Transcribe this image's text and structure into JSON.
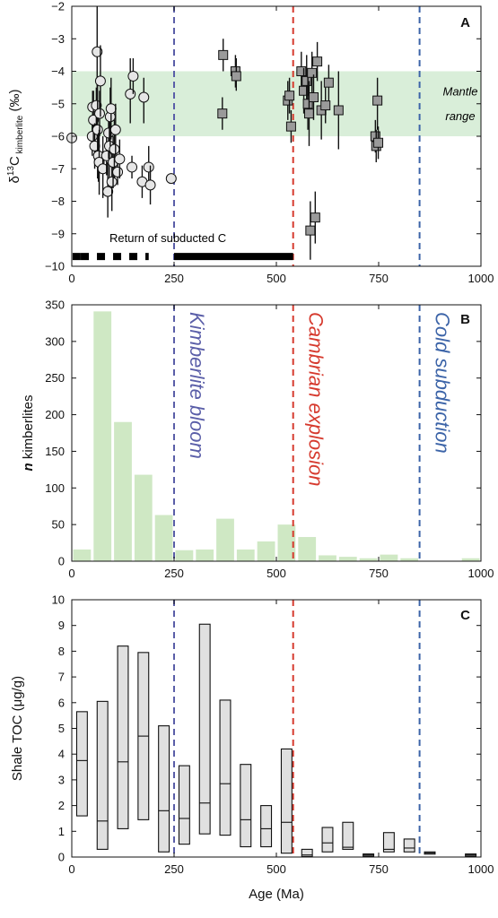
{
  "colors": {
    "mantle_band": "#d9eed9",
    "bar_fill": "#cfe8c4",
    "marker_fill": "#e6e6e6",
    "square_fill": "#9a9a9a",
    "box_fill": "#e0e0e0",
    "kimberlite_line": "#5a5ea8",
    "cambrian_line": "#d63a2e",
    "cold_line": "#3c64a8",
    "kimberlite_text": "#5a5ea8",
    "cambrian_text": "#d63a2e",
    "cold_text": "#3c64a8"
  },
  "vertical_markers": [
    {
      "x": 250,
      "color_key": "kimberlite_line"
    },
    {
      "x": 541,
      "color_key": "cambrian_line"
    },
    {
      "x": 850,
      "color_key": "cold_line"
    }
  ],
  "chart_data": [
    {
      "panel": "A",
      "type": "scatter",
      "ylabel_main": "δ",
      "ylabel_sup": "13",
      "ylabel_c": "C",
      "ylabel_sub": " kimberlite",
      "ylabel_unit": " (‰)",
      "xlim": [
        0,
        1000
      ],
      "ylim": [
        -10,
        -2
      ],
      "xticks": [
        0,
        250,
        500,
        750,
        1000
      ],
      "yticks": [
        -10,
        -9,
        -8,
        -7,
        -6,
        -5,
        -4,
        -3,
        -2
      ],
      "ytick_labels": [
        "−10",
        "−9",
        "−8",
        "−7",
        "−6",
        "−5",
        "−4",
        "−3",
        "−2"
      ],
      "mantle_range": [
        -6,
        -4
      ],
      "mantle_text_1": "Mantle",
      "mantle_text_2": "range",
      "subduction_text": "Return of subducted C",
      "subduction_segments": [
        {
          "from": 2,
          "to": 22,
          "style": "dashed"
        },
        {
          "from": 22,
          "to": 188,
          "style": "dashed"
        },
        {
          "from": 250,
          "to": 541,
          "style": "solid"
        }
      ],
      "circles": [
        {
          "x": 0,
          "y": -6.05,
          "lo": null,
          "hi": null
        },
        {
          "x": 50,
          "y": -6.0,
          "lo": -6.6,
          "hi": -5.5
        },
        {
          "x": 51,
          "y": -5.1,
          "lo": -5.6,
          "hi": -4.6
        },
        {
          "x": 53,
          "y": -5.5,
          "lo": -6.3,
          "hi": -4.6
        },
        {
          "x": 56,
          "y": -6.3,
          "lo": -7.0,
          "hi": -5.6
        },
        {
          "x": 60,
          "y": -5.05,
          "lo": -5.7,
          "hi": -4.5
        },
        {
          "x": 62,
          "y": -3.4,
          "lo": -4.5,
          "hi": -2.0
        },
        {
          "x": 63,
          "y": -5.8,
          "lo": -7.3,
          "hi": -4.4
        },
        {
          "x": 65,
          "y": -6.6,
          "lo": -7.4,
          "hi": -5.9
        },
        {
          "x": 67,
          "y": -6.8,
          "lo": -7.8,
          "hi": -5.8
        },
        {
          "x": 68,
          "y": -5.3,
          "lo": -6.0,
          "hi": -4.6
        },
        {
          "x": 70,
          "y": -4.3,
          "lo": -5.4,
          "hi": -3.2
        },
        {
          "x": 76,
          "y": -7.0,
          "lo": -7.9,
          "hi": -6.0
        },
        {
          "x": 85,
          "y": -6.6,
          "lo": -7.2,
          "hi": -6.0
        },
        {
          "x": 88,
          "y": -7.7,
          "lo": -8.5,
          "hi": -6.8
        },
        {
          "x": 90,
          "y": -5.9,
          "lo": -6.7,
          "hi": -5.0
        },
        {
          "x": 92,
          "y": -6.3,
          "lo": -7.5,
          "hi": -5.2
        },
        {
          "x": 94,
          "y": -5.4,
          "lo": -6.3,
          "hi": -4.5
        },
        {
          "x": 96,
          "y": -5.15,
          "lo": -6.1,
          "hi": -4.2
        },
        {
          "x": 98,
          "y": -7.4,
          "lo": -8.3,
          "hi": -6.5
        },
        {
          "x": 101,
          "y": -6.8,
          "lo": -7.6,
          "hi": -6.0
        },
        {
          "x": 104,
          "y": -6.4,
          "lo": -7.3,
          "hi": -5.5
        },
        {
          "x": 107,
          "y": -5.8,
          "lo": -6.6,
          "hi": -5.0
        },
        {
          "x": 112,
          "y": -7.1,
          "lo": -7.5,
          "hi": -6.7
        },
        {
          "x": 117,
          "y": -6.7,
          "lo": -7.3,
          "hi": -6.1
        },
        {
          "x": 143,
          "y": -4.7,
          "lo": -5.6,
          "hi": -3.6
        },
        {
          "x": 147,
          "y": -6.95,
          "lo": -7.3,
          "hi": -6.6
        },
        {
          "x": 150,
          "y": -4.15,
          "lo": -4.7,
          "hi": -3.6
        },
        {
          "x": 172,
          "y": -7.4,
          "lo": -7.9,
          "hi": -6.9
        },
        {
          "x": 176,
          "y": -4.8,
          "lo": -5.6,
          "hi": -4.2
        },
        {
          "x": 188,
          "y": -6.95,
          "lo": -7.6,
          "hi": -6.3
        },
        {
          "x": 192,
          "y": -7.5,
          "lo": -8.1,
          "hi": -6.9
        },
        {
          "x": 243,
          "y": -7.3,
          "lo": null,
          "hi": null
        }
      ],
      "squares": [
        {
          "x": 368,
          "y": -5.3,
          "lo": -5.8,
          "hi": -4.8
        },
        {
          "x": 370,
          "y": -3.5,
          "lo": -4.0,
          "hi": -3.0
        },
        {
          "x": 400,
          "y": -4.0,
          "lo": -4.5,
          "hi": -3.5
        },
        {
          "x": 402,
          "y": -4.15,
          "lo": -4.6,
          "hi": -3.6
        },
        {
          "x": 528,
          "y": -4.9,
          "lo": -5.5,
          "hi": -4.3
        },
        {
          "x": 532,
          "y": -4.75,
          "lo": -5.3,
          "hi": -4.2
        },
        {
          "x": 536,
          "y": -5.7,
          "lo": -6.2,
          "hi": -5.2
        },
        {
          "x": 561,
          "y": -4.0,
          "lo": -4.7,
          "hi": -3.4
        },
        {
          "x": 567,
          "y": -4.6,
          "lo": -5.3,
          "hi": -3.9
        },
        {
          "x": 574,
          "y": -4.3,
          "lo": -5.1,
          "hi": -3.5
        },
        {
          "x": 577,
          "y": -5.0,
          "lo": -5.8,
          "hi": -4.2
        },
        {
          "x": 580,
          "y": -5.3,
          "lo": -6.3,
          "hi": -4.3
        },
        {
          "x": 583,
          "y": -8.9,
          "lo": -9.8,
          "hi": -8.0
        },
        {
          "x": 587,
          "y": -4.05,
          "lo": -4.7,
          "hi": -3.4
        },
        {
          "x": 591,
          "y": -4.8,
          "lo": -5.5,
          "hi": -4.1
        },
        {
          "x": 595,
          "y": -8.5,
          "lo": -9.3,
          "hi": -7.7
        },
        {
          "x": 600,
          "y": -3.7,
          "lo": -4.3,
          "hi": -3.1
        },
        {
          "x": 610,
          "y": -5.2,
          "lo": -6.1,
          "hi": -4.3
        },
        {
          "x": 620,
          "y": -5.05,
          "lo": -5.6,
          "hi": -4.5
        },
        {
          "x": 628,
          "y": -4.35,
          "lo": -4.9,
          "hi": -3.8
        },
        {
          "x": 652,
          "y": -5.2,
          "lo": -6.4,
          "hi": -4.0
        },
        {
          "x": 742,
          "y": -6.0,
          "lo": -6.5,
          "hi": -5.5
        },
        {
          "x": 744,
          "y": -6.3,
          "lo": -6.8,
          "hi": -5.8
        },
        {
          "x": 747,
          "y": -4.9,
          "lo": -5.8,
          "hi": -4.2
        },
        {
          "x": 749,
          "y": -6.2,
          "lo": -6.7,
          "hi": -5.7
        }
      ]
    },
    {
      "panel": "B",
      "type": "bar",
      "ylabel_n": "n",
      "ylabel_rest": " kimberlites",
      "xlim": [
        0,
        1000
      ],
      "ylim": [
        0,
        350
      ],
      "xticks": [
        0,
        250,
        500,
        750,
        1000
      ],
      "yticks": [
        0,
        50,
        100,
        150,
        200,
        250,
        300,
        350
      ],
      "bin_width": 50,
      "bins_start": [
        0,
        50,
        100,
        150,
        200,
        250,
        300,
        350,
        400,
        450,
        500,
        550,
        600,
        650,
        700,
        750,
        800,
        850,
        900,
        950
      ],
      "values": [
        16,
        341,
        190,
        118,
        63,
        15,
        16,
        58,
        16,
        27,
        50,
        33,
        8,
        6,
        4,
        9,
        4,
        0,
        0,
        4
      ],
      "annotations": [
        {
          "text": "Kimberlite bloom",
          "x": 250,
          "color_key": "kimberlite_text"
        },
        {
          "text": "Cambrian explosion",
          "x": 541,
          "color_key": "cambrian_text"
        },
        {
          "text": "Cold subduction",
          "x": 850,
          "color_key": "cold_text"
        }
      ]
    },
    {
      "panel": "C",
      "type": "boxplot",
      "ylabel": "Shale TOC (μg/g)",
      "xlabel": "Age (Ma)",
      "xlim": [
        0,
        1000
      ],
      "ylim": [
        0,
        10
      ],
      "xticks": [
        0,
        250,
        500,
        750,
        1000
      ],
      "yticks": [
        0,
        1,
        2,
        3,
        4,
        5,
        6,
        7,
        8,
        9,
        10
      ],
      "box_width": 26,
      "boxes": [
        {
          "x": 25,
          "low": 1.6,
          "median": 3.75,
          "high": 5.65
        },
        {
          "x": 75,
          "low": 0.3,
          "median": 1.4,
          "high": 6.05
        },
        {
          "x": 125,
          "low": 1.1,
          "median": 3.7,
          "high": 8.2
        },
        {
          "x": 175,
          "low": 1.45,
          "median": 4.7,
          "high": 7.95
        },
        {
          "x": 225,
          "low": 0.2,
          "median": 1.8,
          "high": 5.1
        },
        {
          "x": 275,
          "low": 0.5,
          "median": 1.5,
          "high": 3.55
        },
        {
          "x": 325,
          "low": 0.9,
          "median": 2.1,
          "high": 9.05
        },
        {
          "x": 375,
          "low": 0.85,
          "median": 2.85,
          "high": 6.1
        },
        {
          "x": 425,
          "low": 0.4,
          "median": 1.45,
          "high": 3.6
        },
        {
          "x": 475,
          "low": 0.4,
          "median": 1.1,
          "high": 2.0
        },
        {
          "x": 525,
          "low": 0.15,
          "median": 1.35,
          "high": 4.2
        },
        {
          "x": 575,
          "low": 0.02,
          "median": 0.08,
          "high": 0.3
        },
        {
          "x": 625,
          "low": 0.2,
          "median": 0.55,
          "high": 1.15
        },
        {
          "x": 675,
          "low": 0.3,
          "median": 0.38,
          "high": 1.35
        },
        {
          "x": 725,
          "low": 0.04,
          "median": 0.08,
          "high": 0.12
        },
        {
          "x": 775,
          "low": 0.2,
          "median": 0.3,
          "high": 0.95
        },
        {
          "x": 825,
          "low": 0.2,
          "median": 0.35,
          "high": 0.7
        },
        {
          "x": 875,
          "low": 0.12,
          "median": 0.16,
          "high": 0.2
        },
        {
          "x": 975,
          "low": 0.04,
          "median": 0.08,
          "high": 0.12
        }
      ]
    }
  ]
}
